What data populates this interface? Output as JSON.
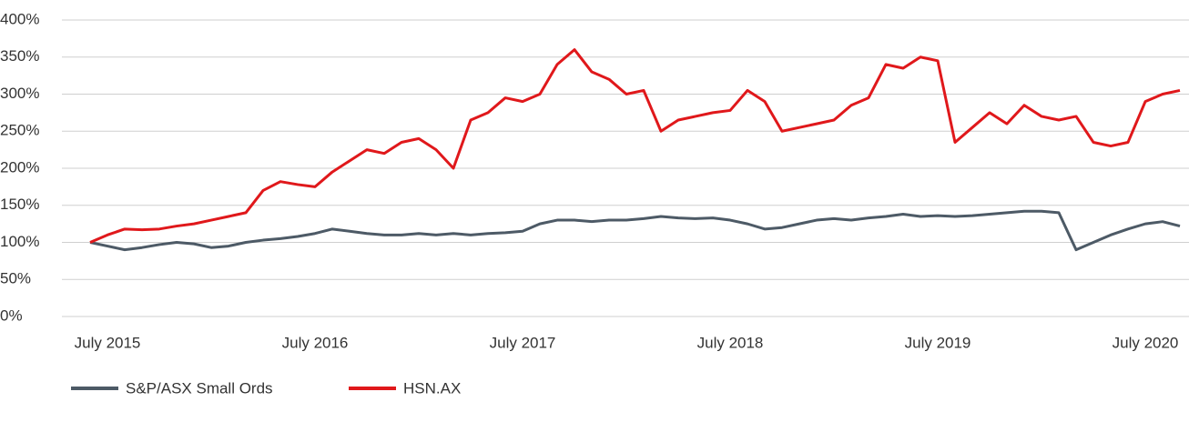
{
  "chart_data": {
    "type": "line",
    "categories": [
      null,
      "July 2015",
      null,
      null,
      null,
      null,
      null,
      null,
      null,
      null,
      null,
      null,
      null,
      "July 2016",
      null,
      null,
      null,
      null,
      null,
      null,
      null,
      null,
      null,
      null,
      null,
      "July 2017",
      null,
      null,
      null,
      null,
      null,
      null,
      null,
      null,
      null,
      null,
      null,
      "July 2018",
      null,
      null,
      null,
      null,
      null,
      null,
      null,
      null,
      null,
      null,
      null,
      "July 2019",
      null,
      null,
      null,
      null,
      null,
      null,
      null,
      null,
      null,
      null,
      null,
      "July 2020",
      null,
      null
    ],
    "series": [
      {
        "name": "S&P/ASX Small Ords",
        "color": "#4d5a66",
        "values": [
          100,
          95,
          90,
          93,
          97,
          100,
          98,
          93,
          95,
          100,
          103,
          105,
          108,
          112,
          118,
          115,
          112,
          110,
          110,
          112,
          110,
          112,
          110,
          112,
          113,
          115,
          125,
          130,
          130,
          128,
          130,
          130,
          132,
          135,
          133,
          132,
          133,
          130,
          125,
          118,
          120,
          125,
          130,
          132,
          130,
          133,
          135,
          138,
          135,
          136,
          135,
          136,
          138,
          140,
          142,
          142,
          140,
          90,
          100,
          110,
          118,
          125,
          128,
          122
        ]
      },
      {
        "name": "HSN.AX",
        "color": "#e0181b",
        "values": [
          100,
          110,
          118,
          117,
          118,
          122,
          125,
          130,
          135,
          140,
          170,
          182,
          178,
          175,
          195,
          210,
          225,
          220,
          235,
          240,
          225,
          200,
          265,
          275,
          295,
          290,
          300,
          340,
          360,
          330,
          320,
          300,
          305,
          250,
          265,
          270,
          275,
          278,
          305,
          290,
          250,
          255,
          260,
          265,
          285,
          295,
          340,
          335,
          350,
          345,
          235,
          255,
          275,
          260,
          285,
          270,
          265,
          270,
          235,
          230,
          235,
          290,
          300,
          305
        ]
      }
    ],
    "ylim": [
      0,
      400
    ],
    "yticks": [
      {
        "value": 0,
        "label": "0%"
      },
      {
        "value": 50,
        "label": "50%"
      },
      {
        "value": 100,
        "label": "100%"
      },
      {
        "value": 150,
        "label": "150%"
      },
      {
        "value": 200,
        "label": "200%"
      },
      {
        "value": 250,
        "label": "250%"
      },
      {
        "value": 300,
        "label": "300%"
      },
      {
        "value": 350,
        "label": "350%"
      },
      {
        "value": 400,
        "label": "400%"
      }
    ],
    "grid": true,
    "legend": "bottom"
  }
}
